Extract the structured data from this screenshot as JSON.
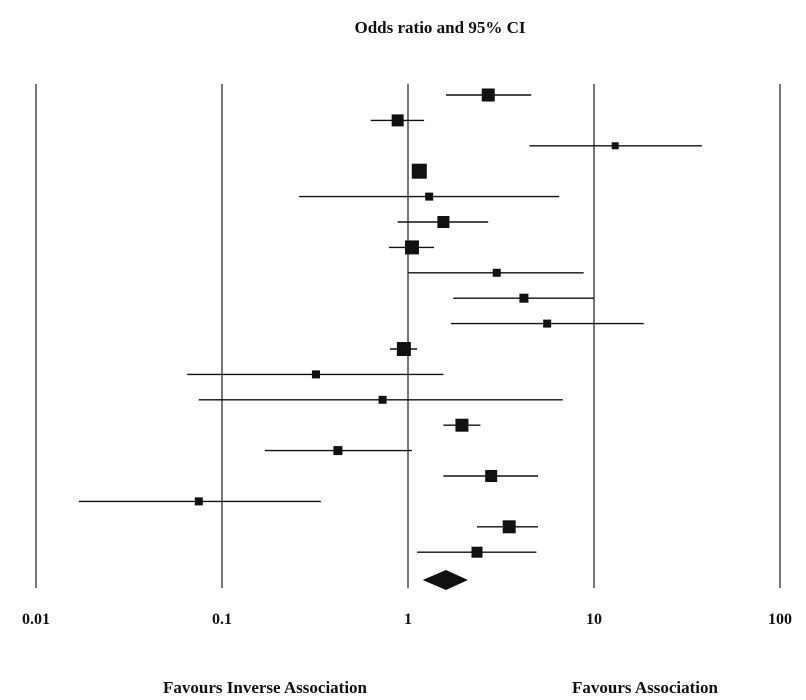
{
  "chart_data": {
    "type": "forest",
    "title": "Odds ratio and 95% CI",
    "x_scale": "log",
    "xlim": [
      0.01,
      100
    ],
    "x_ticks": [
      0.01,
      0.1,
      1,
      10,
      100
    ],
    "x_tick_labels": [
      "0.01",
      "0.1",
      "1",
      "10",
      "100"
    ],
    "grid": "vertical lines at ticks",
    "left_label": "Favours Inverse Association",
    "right_label": "Favours Association",
    "studies": [
      {
        "or": 2.7,
        "lower": 1.6,
        "upper": 4.6,
        "weight": 1.3
      },
      {
        "or": 0.88,
        "lower": 0.63,
        "upper": 1.22,
        "weight": 1.2
      },
      {
        "or": 13.0,
        "lower": 4.5,
        "upper": 38.0,
        "weight": 0.7
      },
      {
        "or": 1.15,
        "lower": 1.05,
        "upper": 1.25,
        "weight": 1.5
      },
      {
        "or": 1.3,
        "lower": 0.26,
        "upper": 6.5,
        "weight": 0.8
      },
      {
        "or": 1.55,
        "lower": 0.88,
        "upper": 2.7,
        "weight": 1.2
      },
      {
        "or": 1.05,
        "lower": 0.79,
        "upper": 1.38,
        "weight": 1.4
      },
      {
        "or": 3.0,
        "lower": 1.0,
        "upper": 8.8,
        "weight": 0.8
      },
      {
        "or": 4.2,
        "lower": 1.75,
        "upper": 10.0,
        "weight": 0.9
      },
      {
        "or": 5.6,
        "lower": 1.7,
        "upper": 18.5,
        "weight": 0.8
      },
      {
        "or": 0.95,
        "lower": 0.8,
        "upper": 1.12,
        "weight": 1.4
      },
      {
        "or": 0.32,
        "lower": 0.065,
        "upper": 1.55,
        "weight": 0.8
      },
      {
        "or": 0.73,
        "lower": 0.075,
        "upper": 6.8,
        "weight": 0.8
      },
      {
        "or": 1.95,
        "lower": 1.55,
        "upper": 2.45,
        "weight": 1.3
      },
      {
        "or": 0.42,
        "lower": 0.17,
        "upper": 1.05,
        "weight": 0.9
      },
      {
        "or": 2.8,
        "lower": 1.55,
        "upper": 5.0,
        "weight": 1.2
      },
      {
        "or": 0.075,
        "lower": 0.017,
        "upper": 0.34,
        "weight": 0.8
      },
      {
        "or": 3.5,
        "lower": 2.35,
        "upper": 5.0,
        "weight": 1.3
      },
      {
        "or": 2.35,
        "lower": 1.12,
        "upper": 4.9,
        "weight": 1.1
      }
    ],
    "pooled": {
      "or": 1.6,
      "lower": 1.2,
      "upper": 2.1
    }
  },
  "colors": {
    "ink": "#111111",
    "gridline": "#555555",
    "background": "#ffffff"
  }
}
